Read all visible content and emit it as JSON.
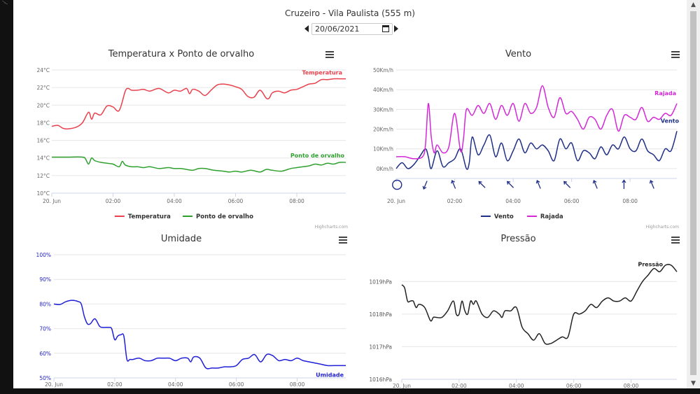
{
  "page": {
    "title": "Cruzeiro - Vila Paulista (555 m)",
    "date": "20/06/2021"
  },
  "chart_data": [
    {
      "id": "temp",
      "type": "line",
      "title": "Temperatura x Ponto de orvalho",
      "x_ticks": [
        "20. Jun",
        "02:00",
        "04:00",
        "06:00",
        "08:00"
      ],
      "y_ticks": [
        "10°C",
        "12°C",
        "14°C",
        "16°C",
        "18°C",
        "20°C",
        "22°C",
        "24°C"
      ],
      "ylim": [
        10,
        24
      ],
      "xlim": [
        0,
        9.6
      ],
      "credit": "Highcharts.com",
      "series": [
        {
          "name": "Temperatura",
          "color": "#e8414c",
          "label": "Temperatura",
          "x": [
            0,
            0.2,
            0.35,
            0.5,
            0.8,
            1.0,
            1.2,
            1.3,
            1.4,
            1.6,
            1.8,
            2.0,
            2.2,
            2.4,
            2.5,
            2.6,
            2.8,
            3.0,
            3.2,
            3.5,
            3.8,
            4.0,
            4.2,
            4.4,
            4.5,
            4.6,
            4.8,
            5.0,
            5.2,
            5.4,
            5.6,
            5.8,
            6.0,
            6.2,
            6.4,
            6.6,
            6.8,
            7.0,
            7.1,
            7.2,
            7.4,
            7.6,
            7.8,
            8.0,
            8.2,
            8.4,
            8.6,
            8.8,
            9.0,
            9.2,
            9.4,
            9.6
          ],
          "values": [
            17.6,
            17.7,
            17.4,
            17.3,
            17.5,
            18.0,
            19.2,
            18.4,
            19.1,
            18.9,
            19.9,
            19.8,
            19.4,
            21.6,
            21.9,
            21.7,
            21.7,
            21.8,
            21.6,
            21.9,
            21.4,
            21.7,
            21.6,
            21.9,
            21.3,
            21.8,
            21.6,
            21.1,
            21.7,
            22.3,
            22.4,
            22.3,
            22.1,
            21.8,
            21.0,
            20.9,
            21.7,
            20.8,
            20.8,
            21.4,
            21.6,
            21.4,
            21.7,
            21.8,
            22.1,
            22.4,
            22.5,
            22.9,
            22.9,
            23.0,
            23.0,
            23.0
          ]
        },
        {
          "name": "Ponto de orvalho",
          "color": "#2ea02e",
          "label": "Ponto de orvalho",
          "x": [
            0,
            0.5,
            1.0,
            1.1,
            1.2,
            1.3,
            1.4,
            1.6,
            1.8,
            2.0,
            2.2,
            2.3,
            2.4,
            2.6,
            2.8,
            3.0,
            3.2,
            3.5,
            3.8,
            4.0,
            4.2,
            4.4,
            4.6,
            4.8,
            5.0,
            5.3,
            5.6,
            5.8,
            6.0,
            6.2,
            6.5,
            6.8,
            7.0,
            7.2,
            7.5,
            7.8,
            8.0,
            8.2,
            8.4,
            8.6,
            8.8,
            9.0,
            9.2,
            9.4,
            9.6
          ],
          "values": [
            14.1,
            14.1,
            14.1,
            13.9,
            13.3,
            14.0,
            13.7,
            13.5,
            13.4,
            13.3,
            13.0,
            13.6,
            13.2,
            13.0,
            13.0,
            12.9,
            13.0,
            12.8,
            12.9,
            12.8,
            12.8,
            12.7,
            12.6,
            12.8,
            12.8,
            12.6,
            12.5,
            12.4,
            12.5,
            12.4,
            12.6,
            12.4,
            12.7,
            12.6,
            12.5,
            12.8,
            12.9,
            13.0,
            13.1,
            13.3,
            13.2,
            13.4,
            13.3,
            13.5,
            13.5
          ]
        }
      ]
    },
    {
      "id": "vento",
      "type": "line",
      "title": "Vento",
      "x_ticks": [
        "20. Jun",
        "02:00",
        "04:00",
        "06:00",
        "08:00"
      ],
      "y_ticks": [
        "0Km/h",
        "10Km/h",
        "20Km/h",
        "30Km/h",
        "40Km/h",
        "50Km/h"
      ],
      "ylim": [
        -5,
        50
      ],
      "xlim": [
        0,
        9.6
      ],
      "credit": "Highcharts.com",
      "wind_direction_arrows": [
        "calm",
        "NNE",
        "SSE",
        "SE",
        "SE",
        "SSE",
        "SE",
        "SSE",
        "S",
        "SSE"
      ],
      "series": [
        {
          "name": "Vento",
          "color": "#1f2f86",
          "label": "Vento",
          "x": [
            0,
            0.2,
            0.4,
            0.6,
            0.8,
            1.0,
            1.1,
            1.2,
            1.4,
            1.6,
            1.8,
            2.0,
            2.2,
            2.4,
            2.5,
            2.6,
            2.8,
            3.0,
            3.2,
            3.4,
            3.6,
            3.8,
            4.0,
            4.2,
            4.4,
            4.6,
            4.8,
            5.0,
            5.2,
            5.4,
            5.6,
            5.8,
            6.0,
            6.2,
            6.4,
            6.6,
            6.8,
            7.0,
            7.2,
            7.4,
            7.6,
            7.8,
            8.0,
            8.2,
            8.4,
            8.6,
            8.8,
            9.0,
            9.2,
            9.4,
            9.6
          ],
          "values": [
            0,
            3,
            0,
            2,
            6,
            10,
            6,
            0,
            9,
            1,
            3,
            5,
            10,
            0,
            3,
            16,
            7,
            12,
            17,
            6,
            13,
            4,
            9,
            15,
            8,
            13,
            10,
            12,
            9,
            4,
            15,
            10,
            13,
            4,
            9,
            8,
            5,
            11,
            7,
            12,
            10,
            16,
            10,
            9,
            15,
            9,
            7,
            4,
            10,
            9,
            19
          ]
        },
        {
          "name": "Rajada",
          "color": "#d428d8",
          "label": "Rajada",
          "x": [
            0,
            0.3,
            0.6,
            0.9,
            1.0,
            1.1,
            1.2,
            1.3,
            1.4,
            1.6,
            1.8,
            2.0,
            2.2,
            2.3,
            2.4,
            2.6,
            2.8,
            3.0,
            3.2,
            3.4,
            3.6,
            3.8,
            4.0,
            4.2,
            4.4,
            4.6,
            4.8,
            5.0,
            5.2,
            5.4,
            5.6,
            5.8,
            6.0,
            6.2,
            6.4,
            6.6,
            6.8,
            7.0,
            7.2,
            7.4,
            7.6,
            7.8,
            8.0,
            8.2,
            8.4,
            8.6,
            8.8,
            9.0,
            9.2,
            9.4,
            9.6
          ],
          "values": [
            6,
            6,
            5,
            6,
            12,
            33,
            16,
            8,
            12,
            8,
            11,
            28,
            9,
            15,
            30,
            27,
            32,
            28,
            33,
            25,
            32,
            27,
            33,
            24,
            33,
            28,
            31,
            42,
            31,
            26,
            36,
            28,
            29,
            25,
            20,
            26,
            25,
            20,
            27,
            30,
            19,
            27,
            26,
            25,
            31,
            24,
            26,
            25,
            28,
            27,
            33
          ]
        }
      ]
    },
    {
      "id": "umidade",
      "type": "line",
      "title": "Umidade",
      "x_ticks": [
        "20. Jun",
        "02:00",
        "04:00",
        "06:00",
        "08:00"
      ],
      "y_ticks": [
        "50%",
        "60%",
        "70%",
        "80%",
        "90%",
        "100%"
      ],
      "ylim": [
        50,
        100
      ],
      "xlim": [
        0,
        9.6
      ],
      "series": [
        {
          "name": "Umidade",
          "color": "#1f1fd8",
          "label": "Umidade",
          "x": [
            0,
            0.2,
            0.4,
            0.6,
            0.8,
            0.9,
            1.0,
            1.1,
            1.2,
            1.35,
            1.5,
            1.6,
            1.8,
            1.9,
            2.0,
            2.1,
            2.2,
            2.3,
            2.4,
            2.5,
            2.6,
            2.8,
            3.0,
            3.2,
            3.4,
            3.6,
            3.8,
            4.0,
            4.2,
            4.4,
            4.5,
            4.6,
            4.8,
            5.0,
            5.2,
            5.4,
            5.6,
            5.8,
            6.0,
            6.2,
            6.4,
            6.6,
            6.8,
            7.0,
            7.2,
            7.4,
            7.6,
            7.8,
            8.0,
            8.2,
            8.4,
            8.6,
            8.8,
            9.0,
            9.2,
            9.4,
            9.6
          ],
          "values": [
            80,
            79.8,
            81,
            81.5,
            81,
            80,
            75,
            72,
            72,
            74,
            71,
            70.5,
            70.5,
            70,
            65.5,
            67,
            67.5,
            67,
            57.5,
            57.5,
            57.5,
            58,
            57,
            57,
            58,
            58,
            58,
            57,
            58,
            58,
            56.5,
            58.5,
            58,
            54,
            54,
            54,
            54.5,
            54.5,
            55,
            57.5,
            58,
            59.5,
            56.5,
            59.5,
            59,
            57,
            57.5,
            57,
            58,
            57,
            56.5,
            56,
            55.5,
            55,
            55,
            55,
            55
          ]
        }
      ]
    },
    {
      "id": "pressao",
      "type": "line",
      "title": "Pressão",
      "x_ticks": [
        "20. Jun",
        "02:00",
        "04:00",
        "06:00",
        "08:00"
      ],
      "y_ticks": [
        "1016hPa",
        "1017hPa",
        "1018hPa",
        "1019hPa"
      ],
      "ylim": [
        1016,
        1019.8
      ],
      "xlim": [
        0,
        9.6
      ],
      "series": [
        {
          "name": "Pressão",
          "color": "#222222",
          "label": "Pressão",
          "x": [
            0,
            0.1,
            0.2,
            0.3,
            0.4,
            0.5,
            0.6,
            0.8,
            1.0,
            1.1,
            1.2,
            1.4,
            1.6,
            1.8,
            1.9,
            2.0,
            2.1,
            2.2,
            2.3,
            2.4,
            2.5,
            2.6,
            2.8,
            3.0,
            3.2,
            3.4,
            3.5,
            3.6,
            3.8,
            4.0,
            4.2,
            4.4,
            4.6,
            4.8,
            5.0,
            5.2,
            5.4,
            5.6,
            5.8,
            6.0,
            6.2,
            6.4,
            6.6,
            6.8,
            7.0,
            7.2,
            7.4,
            7.6,
            7.8,
            8.0,
            8.2,
            8.4,
            8.6,
            8.8,
            9.0,
            9.2,
            9.4,
            9.6
          ],
          "values": [
            1018.9,
            1018.8,
            1018.4,
            1018.4,
            1018.4,
            1018.2,
            1018.3,
            1018.2,
            1017.8,
            1017.9,
            1017.9,
            1017.9,
            1018.1,
            1018.4,
            1018.0,
            1018.0,
            1018.4,
            1018.1,
            1018.0,
            1018.4,
            1018.3,
            1018.4,
            1018.0,
            1017.9,
            1018.1,
            1018.0,
            1017.9,
            1018.1,
            1018.1,
            1018.2,
            1017.6,
            1017.4,
            1017.2,
            1017.4,
            1017.1,
            1017.1,
            1017.2,
            1017.3,
            1017.3,
            1018.0,
            1018.0,
            1018.1,
            1018.3,
            1018.2,
            1018.4,
            1018.5,
            1018.4,
            1018.4,
            1018.5,
            1018.4,
            1018.7,
            1019.0,
            1019.2,
            1019.4,
            1019.3,
            1019.5,
            1019.5,
            1019.3
          ]
        }
      ]
    }
  ]
}
